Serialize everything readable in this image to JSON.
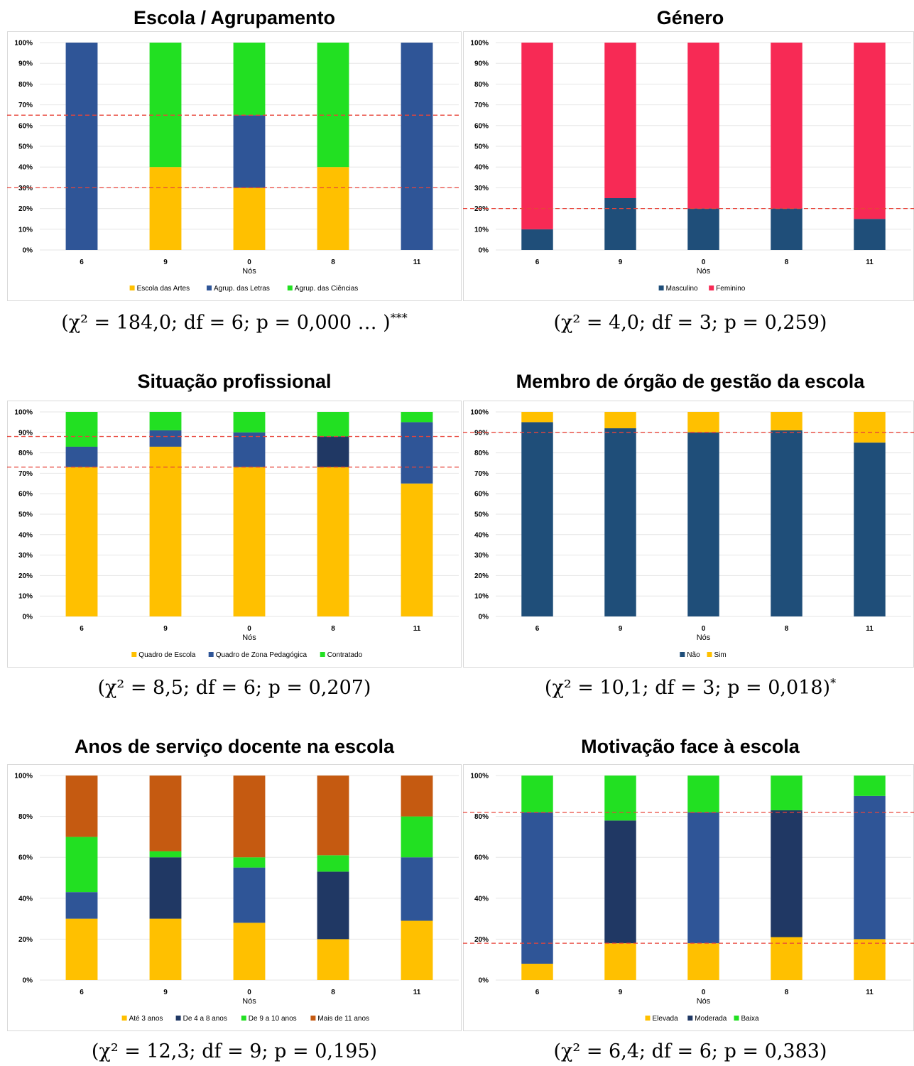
{
  "chart_data": [
    {
      "type": "bar",
      "stacked": true,
      "title": "Escola / Agrupamento",
      "xlabel": "Nós",
      "categories": [
        "6",
        "9",
        "0",
        "8",
        "11"
      ],
      "ylim": [
        0,
        100
      ],
      "yticks": [
        "0%",
        "10%",
        "20%",
        "30%",
        "40%",
        "50%",
        "60%",
        "70%",
        "80%",
        "90%",
        "100%"
      ],
      "series": [
        {
          "name": "Escola das Artes",
          "color": "#FFC000",
          "values": [
            0,
            40,
            30,
            40,
            0
          ]
        },
        {
          "name": "Agrup. das Letras",
          "color": "#2F5597",
          "values": [
            100,
            0,
            35,
            0,
            100
          ]
        },
        {
          "name": "Agrup. das Ciências",
          "color": "#22E022",
          "values": [
            0,
            60,
            35,
            60,
            0
          ]
        }
      ],
      "reference_lines": [
        30,
        65
      ],
      "stat": {
        "text": "(χ² = 184,0; df = 6; p = 0,000 … )",
        "sig": "***"
      }
    },
    {
      "type": "bar",
      "stacked": true,
      "title": "Género",
      "xlabel": "Nós",
      "categories": [
        "6",
        "9",
        "0",
        "8",
        "11"
      ],
      "ylim": [
        0,
        100
      ],
      "yticks": [
        "0%",
        "10%",
        "20%",
        "30%",
        "40%",
        "50%",
        "60%",
        "70%",
        "80%",
        "90%",
        "100%"
      ],
      "series": [
        {
          "name": "Masculino",
          "color": "#1F4E79",
          "values": [
            10,
            25,
            20,
            20,
            15
          ]
        },
        {
          "name": "Feminino",
          "color": "#F72A55",
          "values": [
            90,
            75,
            80,
            80,
            85
          ]
        }
      ],
      "reference_lines": [
        20
      ],
      "stat": {
        "text": "(χ² = 4,0; df = 3; p = 0,259)",
        "sig": ""
      }
    },
    {
      "type": "bar",
      "stacked": true,
      "title": "Situação profissional",
      "xlabel": "Nós",
      "categories": [
        "6",
        "9",
        "0",
        "8",
        "11"
      ],
      "ylim": [
        0,
        100
      ],
      "yticks": [
        "0%",
        "10%",
        "20%",
        "30%",
        "40%",
        "50%",
        "60%",
        "70%",
        "80%",
        "90%",
        "100%"
      ],
      "series": [
        {
          "name": "Quadro de Escola",
          "color": "#FFC000",
          "values": [
            73,
            83,
            73,
            73,
            65
          ]
        },
        {
          "name": "Quadro de Zona Pedagógica",
          "color": "#2F5597",
          "values": [
            10,
            8,
            17,
            15,
            30
          ]
        },
        {
          "name": "Contratado",
          "color": "#22E022",
          "values": [
            17,
            9,
            10,
            12,
            5
          ]
        }
      ],
      "series_colors_override": {
        "3": {
          "1": "#203864"
        }
      },
      "reference_lines": [
        73,
        88
      ],
      "stat": {
        "text": "(χ² = 8,5; df = 6; p = 0,207)",
        "sig": ""
      }
    },
    {
      "type": "bar",
      "stacked": true,
      "title": "Membro de órgão de gestão da escola",
      "xlabel": "Nós",
      "categories": [
        "6",
        "9",
        "0",
        "8",
        "11"
      ],
      "ylim": [
        0,
        100
      ],
      "yticks": [
        "0%",
        "10%",
        "20%",
        "30%",
        "40%",
        "50%",
        "60%",
        "70%",
        "80%",
        "90%",
        "100%"
      ],
      "series": [
        {
          "name": "Não",
          "color": "#1F4E79",
          "values": [
            95,
            92,
            90,
            91,
            85
          ]
        },
        {
          "name": "Sim",
          "color": "#FFC000",
          "values": [
            5,
            8,
            10,
            9,
            15
          ]
        }
      ],
      "reference_lines": [
        90
      ],
      "stat": {
        "text": "(χ² = 10,1; df = 3; p = 0,018)",
        "sig": "*"
      }
    },
    {
      "type": "bar",
      "stacked": true,
      "title": "Anos de serviço docente na escola",
      "xlabel": "Nós",
      "categories": [
        "6",
        "9",
        "0",
        "8",
        "11"
      ],
      "ylim": [
        0,
        100
      ],
      "yticks": [
        "0%",
        "20%",
        "40%",
        "60%",
        "80%",
        "100%"
      ],
      "series": [
        {
          "name": "Até 3 anos",
          "color": "#FFC000",
          "values": [
            30,
            30,
            28,
            20,
            29
          ]
        },
        {
          "name": "De 4 a 8 anos",
          "color": "#2F5597",
          "values": [
            13,
            30,
            27,
            33,
            31
          ]
        },
        {
          "name": "De 9 a 10 anos",
          "color": "#22E022",
          "values": [
            27,
            3,
            5,
            8,
            20
          ]
        },
        {
          "name": "Mais de 11 anos",
          "color": "#C55A11",
          "values": [
            30,
            37,
            40,
            39,
            20
          ]
        }
      ],
      "series_colors_override": {
        "1": {
          "1": "#203864"
        },
        "3": {
          "1": "#203864"
        }
      },
      "legend_colors": [
        "#FFC000",
        "#203864",
        "#22E022",
        "#C55A11"
      ],
      "reference_lines": [],
      "stat": {
        "text": "(χ² = 12,3; df = 9; p = 0,195)",
        "sig": ""
      }
    },
    {
      "type": "bar",
      "stacked": true,
      "title": "Motivação face à escola",
      "xlabel": "Nós",
      "categories": [
        "6",
        "9",
        "0",
        "8",
        "11"
      ],
      "ylim": [
        0,
        100
      ],
      "yticks": [
        "0%",
        "20%",
        "40%",
        "60%",
        "80%",
        "100%"
      ],
      "series": [
        {
          "name": "Elevada",
          "color": "#FFC000",
          "values": [
            8,
            18,
            18,
            21,
            20
          ]
        },
        {
          "name": "Moderada",
          "color": "#2F5597",
          "values": [
            74,
            60,
            64,
            62,
            70
          ]
        },
        {
          "name": "Baixa",
          "color": "#22E022",
          "values": [
            18,
            22,
            18,
            17,
            10
          ]
        }
      ],
      "series_colors_override": {
        "1": {
          "1": "#203864"
        },
        "3": {
          "1": "#203864"
        }
      },
      "legend_colors": [
        "#FFC000",
        "#203864",
        "#22E022"
      ],
      "reference_lines": [
        18,
        82
      ],
      "stat": {
        "text": "(χ² = 6,4; df = 6; p = 0,383)",
        "sig": ""
      }
    }
  ]
}
